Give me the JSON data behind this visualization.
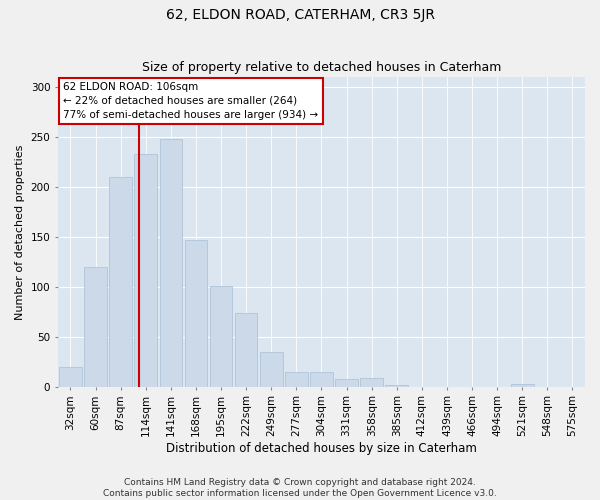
{
  "title": "62, ELDON ROAD, CATERHAM, CR3 5JR",
  "subtitle": "Size of property relative to detached houses in Caterham",
  "xlabel": "Distribution of detached houses by size in Caterham",
  "ylabel": "Number of detached properties",
  "categories": [
    "32sqm",
    "60sqm",
    "87sqm",
    "114sqm",
    "141sqm",
    "168sqm",
    "195sqm",
    "222sqm",
    "249sqm",
    "277sqm",
    "304sqm",
    "331sqm",
    "358sqm",
    "385sqm",
    "412sqm",
    "439sqm",
    "466sqm",
    "494sqm",
    "521sqm",
    "548sqm",
    "575sqm"
  ],
  "values": [
    20,
    120,
    210,
    233,
    248,
    147,
    101,
    74,
    35,
    15,
    15,
    8,
    9,
    2,
    0,
    0,
    0,
    0,
    3,
    0,
    0
  ],
  "bar_color": "#ccd9e8",
  "bar_edge_color": "#b0c4d8",
  "line_color": "#cc0000",
  "line_x_index": 2.72,
  "annotation_label": "62 ELDON ROAD: 106sqm",
  "annotation_line1": "← 22% of detached houses are smaller (264)",
  "annotation_line2": "77% of semi-detached houses are larger (934) →",
  "annotation_box_facecolor": "#ffffff",
  "annotation_box_edgecolor": "#cc0000",
  "ylim": [
    0,
    310
  ],
  "yticks": [
    0,
    50,
    100,
    150,
    200,
    250,
    300
  ],
  "background_color": "#dce6f0",
  "fig_facecolor": "#f0f0f0",
  "title_fontsize": 10,
  "subtitle_fontsize": 9,
  "ylabel_fontsize": 8,
  "xlabel_fontsize": 8.5,
  "tick_fontsize": 7.5,
  "footer1": "Contains HM Land Registry data © Crown copyright and database right 2024.",
  "footer2": "Contains public sector information licensed under the Open Government Licence v3.0.",
  "footer_fontsize": 6.5
}
